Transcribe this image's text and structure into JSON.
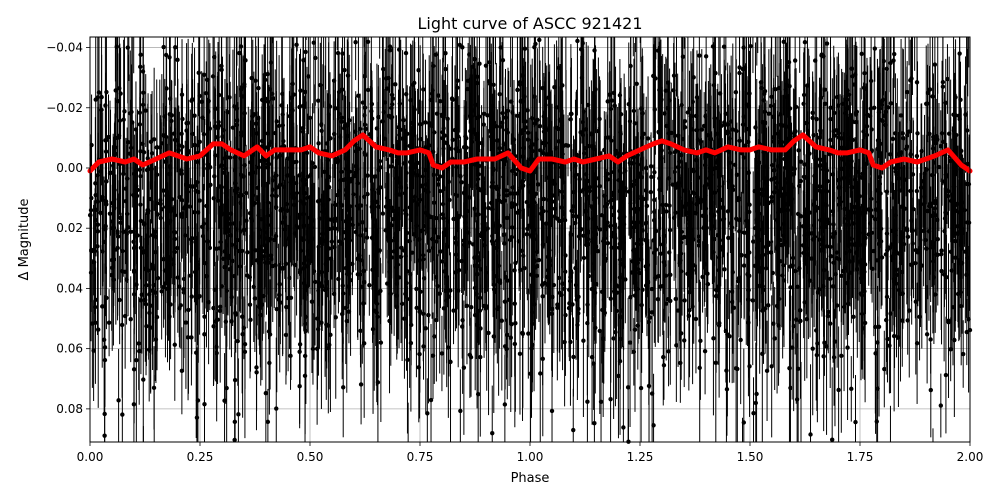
{
  "chart_data": {
    "type": "scatter",
    "title": "Light curve of ASCC 921421",
    "xlabel": "Phase",
    "ylabel": "Δ Magnitude",
    "xlim": [
      0.0,
      2.0
    ],
    "ylim": [
      0.091,
      -0.0435
    ],
    "y_axis_inverted": true,
    "grid": true,
    "legend": "none",
    "x_tick_labels": [
      "0.00",
      "0.25",
      "0.50",
      "0.75",
      "1.00",
      "1.25",
      "1.50",
      "1.75",
      "2.00"
    ],
    "y_tick_labels": [
      "−0.04",
      "−0.02",
      "0.00",
      "0.02",
      "0.04",
      "0.06",
      "0.08"
    ],
    "series": [
      {
        "style": "black points with error bars",
        "color": "#000000",
        "n_points_approx": 3000,
        "mean_mag": 0.012,
        "scatter_sigma_mag": 0.028,
        "typical_errorbar_mag": 0.02
      },
      {
        "style": "binned trend line",
        "color": "#ff0000",
        "x": [
          0.0,
          0.02,
          0.05,
          0.08,
          0.1,
          0.12,
          0.15,
          0.18,
          0.2,
          0.22,
          0.25,
          0.28,
          0.3,
          0.32,
          0.35,
          0.38,
          0.4,
          0.42,
          0.45,
          0.48,
          0.5,
          0.52,
          0.55,
          0.58,
          0.6,
          0.62,
          0.65,
          0.68,
          0.7,
          0.72,
          0.75,
          0.77,
          0.78,
          0.8,
          0.82,
          0.85,
          0.88,
          0.9,
          0.92,
          0.95,
          0.98,
          1.0,
          1.02,
          1.05,
          1.08,
          1.1,
          1.12,
          1.15,
          1.18,
          1.2,
          1.22,
          1.25,
          1.28,
          1.3,
          1.32,
          1.35,
          1.38,
          1.4,
          1.42,
          1.45,
          1.48,
          1.5,
          1.52,
          1.55,
          1.58,
          1.6,
          1.62,
          1.65,
          1.68,
          1.7,
          1.72,
          1.75,
          1.77,
          1.78,
          1.8,
          1.82,
          1.85,
          1.88,
          1.9,
          1.92,
          1.95,
          1.98,
          2.0
        ],
        "y": [
          0.001,
          -0.002,
          -0.003,
          -0.002,
          -0.003,
          -0.001,
          -0.003,
          -0.005,
          -0.004,
          -0.003,
          -0.004,
          -0.008,
          -0.008,
          -0.006,
          -0.004,
          -0.007,
          -0.004,
          -0.006,
          -0.006,
          -0.006,
          -0.007,
          -0.005,
          -0.004,
          -0.006,
          -0.009,
          -0.011,
          -0.007,
          -0.006,
          -0.005,
          -0.005,
          -0.006,
          -0.005,
          -0.001,
          0.0,
          -0.002,
          -0.002,
          -0.003,
          -0.003,
          -0.003,
          -0.005,
          0.0,
          0.001,
          -0.003,
          -0.003,
          -0.002,
          -0.003,
          -0.002,
          -0.003,
          -0.004,
          -0.002,
          -0.004,
          -0.006,
          -0.008,
          -0.009,
          -0.008,
          -0.006,
          -0.005,
          -0.006,
          -0.005,
          -0.007,
          -0.006,
          -0.006,
          -0.007,
          -0.006,
          -0.006,
          -0.009,
          -0.011,
          -0.007,
          -0.006,
          -0.005,
          -0.005,
          -0.006,
          -0.005,
          -0.001,
          0.0,
          -0.002,
          -0.003,
          -0.002,
          -0.003,
          -0.004,
          -0.006,
          -0.001,
          0.001
        ]
      }
    ]
  }
}
